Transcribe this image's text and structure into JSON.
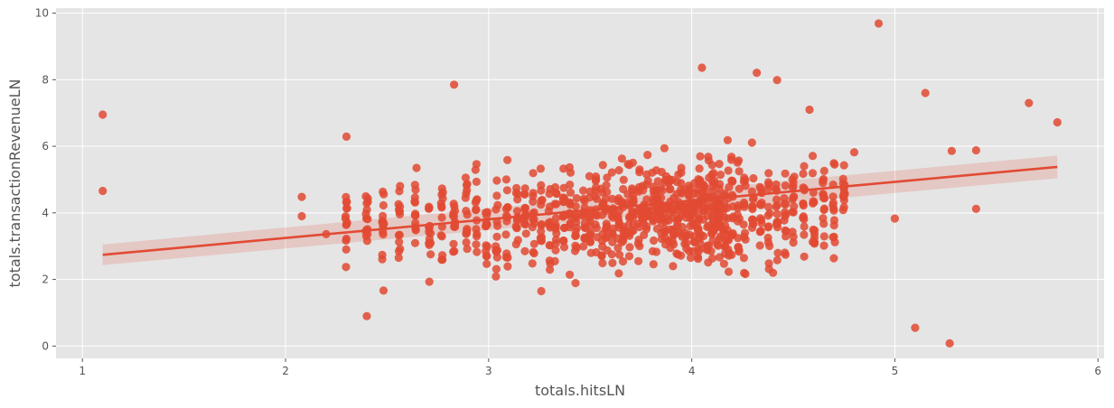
{
  "chart_data": {
    "type": "scatter",
    "title": "",
    "xlabel": "totals.hitsLN",
    "ylabel": "totals.transactionRevenueLN",
    "xlim": [
      0.87,
      6.03
    ],
    "ylim": [
      -0.37,
      10.15
    ],
    "xticks": [
      1,
      2,
      3,
      4,
      5,
      6
    ],
    "yticks": [
      0,
      2,
      4,
      6,
      8,
      10
    ],
    "grid": true,
    "style": "ggplot",
    "colors": {
      "background": "#e5e5e5",
      "grid": "#ffffff",
      "points": "#e24a33",
      "regression": "#e24a33",
      "confidence_band": "#e24a33"
    },
    "regression": {
      "x": [
        1.1,
        5.8
      ],
      "y": [
        2.74,
        5.38
      ],
      "ci_upper": [
        3.05,
        5.72
      ],
      "ci_lower": [
        2.43,
        5.04
      ]
    },
    "notable_points": [
      {
        "x": 1.1,
        "y": 6.95
      },
      {
        "x": 1.1,
        "y": 4.66
      },
      {
        "x": 4.92,
        "y": 9.69
      },
      {
        "x": 4.05,
        "y": 8.36
      },
      {
        "x": 4.32,
        "y": 8.21
      },
      {
        "x": 4.42,
        "y": 7.99
      },
      {
        "x": 2.83,
        "y": 7.85
      },
      {
        "x": 5.66,
        "y": 7.3
      },
      {
        "x": 5.15,
        "y": 7.6
      },
      {
        "x": 5.8,
        "y": 6.72
      },
      {
        "x": 5.1,
        "y": 0.55
      },
      {
        "x": 5.27,
        "y": 0.08
      },
      {
        "x": 5.4,
        "y": 4.12
      },
      {
        "x": 4.4,
        "y": 2.2
      },
      {
        "x": 2.4,
        "y": 0.9
      },
      {
        "x": 2.3,
        "y": 6.29
      },
      {
        "x": 5.28,
        "y": 5.86
      },
      {
        "x": 5.4,
        "y": 5.88
      },
      {
        "x": 2.08,
        "y": 4.48
      },
      {
        "x": 2.08,
        "y": 3.9
      },
      {
        "x": 2.2,
        "y": 3.36
      },
      {
        "x": 4.8,
        "y": 5.82
      },
      {
        "x": 4.58,
        "y": 7.1
      },
      {
        "x": 5.0,
        "y": 3.83
      }
    ],
    "cluster": {
      "x_columns": [
        2.3,
        2.4,
        2.48,
        2.56,
        2.64,
        2.71,
        2.77,
        2.83,
        2.89,
        2.94,
        2.99,
        3.04,
        3.09,
        3.14,
        3.18,
        3.22,
        3.26,
        3.3,
        3.33,
        3.37,
        3.4,
        3.43,
        3.47,
        3.5,
        3.53,
        3.56,
        3.58,
        3.61,
        3.64,
        3.66,
        3.69,
        3.71,
        3.74,
        3.76,
        3.78,
        3.81,
        3.83,
        3.85,
        3.87,
        3.89,
        3.91,
        3.93,
        3.95,
        3.97,
        3.99,
        4.01,
        4.03,
        4.04,
        4.06,
        4.08,
        4.1,
        4.11,
        4.13,
        4.14,
        4.16,
        4.18,
        4.2,
        4.23,
        4.26,
        4.3,
        4.34,
        4.38,
        4.42,
        4.46,
        4.5,
        4.55,
        4.6,
        4.65,
        4.7,
        4.75
      ],
      "y_center": 3.85,
      "y_spread": 1.35,
      "points_per_column": 14
    }
  }
}
